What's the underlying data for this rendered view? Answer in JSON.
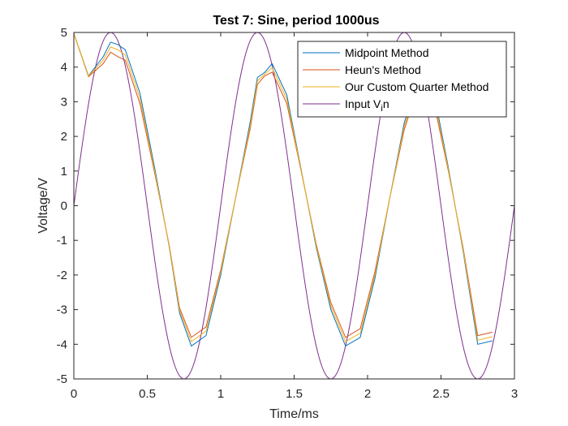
{
  "chart_data": {
    "type": "line",
    "title": "Test 7: Sine, period 1000us",
    "xlabel": "Time/ms",
    "ylabel": "Voltage/V",
    "xlim": [
      0,
      3
    ],
    "ylim": [
      -5,
      5
    ],
    "xticks": [
      0,
      0.5,
      1,
      1.5,
      2,
      2.5,
      3
    ],
    "xtick_labels": [
      "0",
      "0.5",
      "1",
      "1.5",
      "2",
      "2.5",
      "3"
    ],
    "yticks": [
      5,
      4,
      3,
      2,
      1,
      0,
      -1,
      -2,
      -3,
      -4,
      -5
    ],
    "ytick_labels": [
      "5",
      "4",
      "3",
      "2",
      "1",
      "0",
      "-1",
      "-2",
      "-3",
      "-4",
      "-5"
    ],
    "grid": false,
    "legend_position": "top-right",
    "series": [
      {
        "name": "Midpoint Method",
        "color": "#0072BD",
        "x": [
          0,
          0.1,
          0.2,
          0.25,
          0.3,
          0.35,
          0.45,
          0.55,
          0.65,
          0.72,
          0.8,
          0.9,
          1.0,
          1.1,
          1.2,
          1.25,
          1.3,
          1.35,
          1.45,
          1.55,
          1.65,
          1.75,
          1.85,
          1.95,
          2.05,
          2.15,
          2.25,
          2.35,
          2.45,
          2.55,
          2.65,
          2.75,
          2.85
        ],
        "y": [
          4.97,
          3.75,
          4.3,
          4.72,
          4.65,
          4.5,
          3.25,
          1.1,
          -1.2,
          -3.1,
          -4.05,
          -3.75,
          -2.0,
          0.2,
          2.4,
          3.7,
          3.85,
          4.1,
          3.2,
          1.0,
          -1.2,
          -3.0,
          -4.05,
          -3.8,
          -2.1,
          0.2,
          2.4,
          3.7,
          3.3,
          1.1,
          -1.3,
          -4.0,
          -3.9
        ]
      },
      {
        "name": "Heun's Method",
        "color": "#D95319",
        "x": [
          0,
          0.1,
          0.2,
          0.25,
          0.3,
          0.35,
          0.45,
          0.55,
          0.65,
          0.72,
          0.8,
          0.9,
          1.0,
          1.1,
          1.2,
          1.25,
          1.3,
          1.35,
          1.45,
          1.55,
          1.65,
          1.75,
          1.85,
          1.95,
          2.05,
          2.15,
          2.25,
          2.35,
          2.45,
          2.55,
          2.65,
          2.75,
          2.85
        ],
        "y": [
          4.97,
          3.72,
          4.1,
          4.43,
          4.3,
          4.2,
          2.95,
          0.95,
          -1.15,
          -2.95,
          -3.8,
          -3.5,
          -1.85,
          0.2,
          2.2,
          3.5,
          3.75,
          3.85,
          2.95,
          0.95,
          -1.1,
          -2.8,
          -3.8,
          -3.55,
          -1.9,
          0.2,
          2.2,
          3.5,
          3.0,
          1.0,
          -1.2,
          -3.75,
          -3.65
        ]
      },
      {
        "name": "Our Custom Quarter Method",
        "color": "#EDB120",
        "x": [
          0,
          0.1,
          0.2,
          0.25,
          0.3,
          0.35,
          0.45,
          0.55,
          0.65,
          0.72,
          0.8,
          0.9,
          1.0,
          1.1,
          1.2,
          1.25,
          1.3,
          1.35,
          1.45,
          1.55,
          1.65,
          1.75,
          1.85,
          1.95,
          2.05,
          2.15,
          2.25,
          2.35,
          2.45,
          2.55,
          2.65,
          2.75,
          2.85
        ],
        "y": [
          4.97,
          3.74,
          4.2,
          4.58,
          4.5,
          4.35,
          3.1,
          1.02,
          -1.18,
          -3.02,
          -3.92,
          -3.62,
          -1.92,
          0.2,
          2.3,
          3.6,
          3.8,
          3.98,
          3.08,
          0.98,
          -1.15,
          -2.9,
          -3.92,
          -3.68,
          -2.0,
          0.2,
          2.3,
          3.6,
          3.15,
          1.05,
          -1.25,
          -3.88,
          -3.78
        ]
      },
      {
        "name": "Input V_in",
        "color": "#7E2F8E",
        "function": "5*sin(2*pi*t)",
        "x_range": [
          0,
          3
        ],
        "samples": 301
      }
    ]
  },
  "legend": {
    "items": [
      {
        "prefix": "Midpoint Method",
        "sub": "",
        "suffix": ""
      },
      {
        "prefix": "Heun's Method",
        "sub": "",
        "suffix": ""
      },
      {
        "prefix": "Our Custom Quarter Method",
        "sub": "",
        "suffix": ""
      },
      {
        "prefix": "Input V",
        "sub": "i",
        "suffix": "n"
      }
    ]
  }
}
